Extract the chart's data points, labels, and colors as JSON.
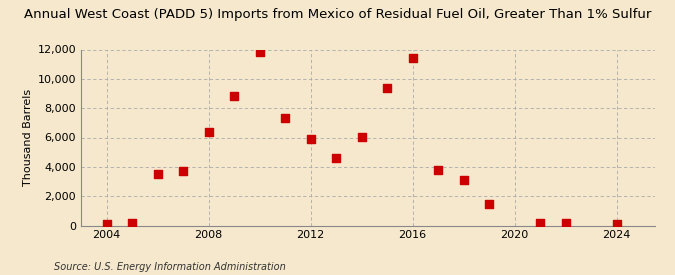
{
  "title": "Annual West Coast (PADD 5) Imports from Mexico of Residual Fuel Oil, Greater Than 1% Sulfur",
  "ylabel": "Thousand Barrels",
  "source": "Source: U.S. Energy Information Administration",
  "background_color": "#f5e8cc",
  "dot_color": "#cc0000",
  "years": [
    2004,
    2005,
    2006,
    2007,
    2008,
    2009,
    2010,
    2011,
    2012,
    2013,
    2014,
    2015,
    2016,
    2017,
    2018,
    2019,
    2021,
    2022,
    2024
  ],
  "values": [
    100,
    155,
    3500,
    3700,
    6400,
    8800,
    11800,
    7300,
    5900,
    4600,
    6050,
    9400,
    11400,
    3800,
    3100,
    1450,
    200,
    150,
    100
  ],
  "ylim": [
    0,
    12000
  ],
  "yticks": [
    0,
    2000,
    4000,
    6000,
    8000,
    10000,
    12000
  ],
  "xlim": [
    2003.0,
    2025.5
  ],
  "xticks": [
    2004,
    2008,
    2012,
    2016,
    2020,
    2024
  ],
  "grid_color": "#aaaaaa",
  "title_fontsize": 9.5,
  "label_fontsize": 8,
  "tick_fontsize": 8,
  "source_fontsize": 7,
  "marker_size": 35
}
